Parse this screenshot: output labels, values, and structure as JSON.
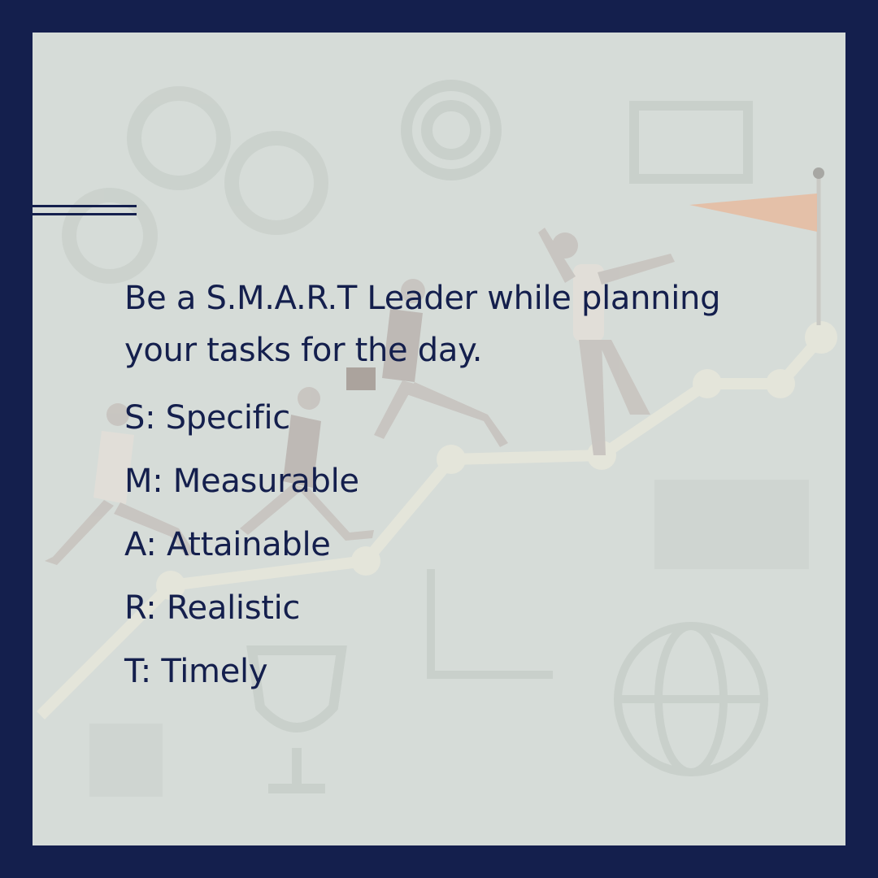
{
  "headline": "Be a S.M.A.R.T Leader while planning your tasks for the day.",
  "items": [
    {
      "label": "S: Specific"
    },
    {
      "label": "M: Measurable"
    },
    {
      "label": "A: Attainable"
    },
    {
      "label": "R: Realistic"
    },
    {
      "label": "T: Timely"
    }
  ],
  "colors": {
    "frame": "#141f4d",
    "panel": "#d6dcd8",
    "text": "#141f4d",
    "flag": "#e8b89c"
  }
}
